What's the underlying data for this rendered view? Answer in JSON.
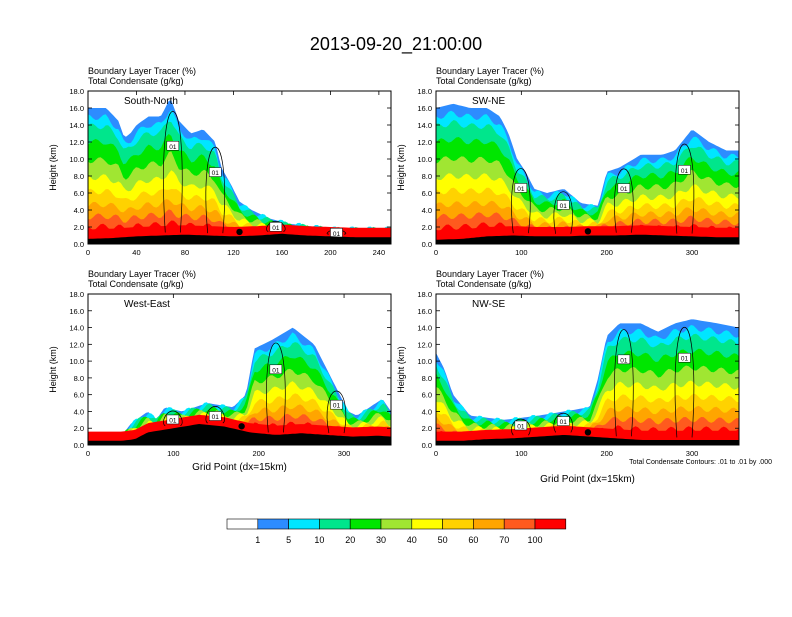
{
  "page_title": "2013-09-20_21:00:00",
  "panel_header_line1": "Boundary Layer Tracer   (%)",
  "panel_header_line2": "Total Condensate   (g/kg)",
  "y_axis_label": "Height (km)",
  "x_axis_label": "Grid Point (dx=15km)",
  "contour_note": "Total Condensate Contours: .01 to .01 by .000",
  "contour_label": "01",
  "colors": {
    "levels": [
      "#ffffff",
      "#2d8cff",
      "#00e6ff",
      "#00e68c",
      "#00e600",
      "#a0e632",
      "#ffff00",
      "#ffd200",
      "#ffa500",
      "#ff5a1e",
      "#ff0000"
    ],
    "dark_red": "#c80000",
    "terrain": "#000000",
    "contour": "#000000"
  },
  "chart_data": [
    {
      "type": "heatmap",
      "title": "South-North",
      "xlim": [
        0,
        250
      ],
      "ylim": [
        0,
        18
      ],
      "xticks": [
        "0",
        "40",
        "80",
        "120",
        "160",
        "200",
        "240"
      ],
      "xtick_values": [
        0,
        40,
        80,
        120,
        160,
        200,
        240
      ],
      "yticks": [
        "0.0",
        "2.0",
        "4.0",
        "6.0",
        "8.0",
        "10.0",
        "12.0",
        "14.0",
        "16.0",
        "18.0"
      ],
      "ytick_values": [
        0,
        2,
        4,
        6,
        8,
        10,
        12,
        14,
        16,
        18
      ],
      "marker_x": 125,
      "terrain": [
        [
          0,
          0.6
        ],
        [
          20,
          0.7
        ],
        [
          40,
          0.9
        ],
        [
          60,
          1.0
        ],
        [
          80,
          1.1
        ],
        [
          100,
          1.0
        ],
        [
          120,
          0.9
        ],
        [
          140,
          1.0
        ],
        [
          160,
          1.2
        ],
        [
          180,
          1.0
        ],
        [
          200,
          0.9
        ],
        [
          220,
          0.8
        ],
        [
          250,
          0.8
        ]
      ],
      "cloud_top": [
        [
          0,
          16
        ],
        [
          15,
          16
        ],
        [
          25,
          14.5
        ],
        [
          30,
          12.5
        ],
        [
          35,
          13
        ],
        [
          40,
          14
        ],
        [
          50,
          15
        ],
        [
          60,
          15
        ],
        [
          68,
          17.2
        ],
        [
          75,
          14.5
        ],
        [
          85,
          13
        ],
        [
          95,
          13.5
        ],
        [
          105,
          12
        ],
        [
          110,
          9
        ],
        [
          118,
          7
        ],
        [
          125,
          5
        ],
        [
          135,
          4
        ],
        [
          150,
          3
        ],
        [
          165,
          2.4
        ],
        [
          200,
          1.8
        ],
        [
          250,
          1.8
        ]
      ]
    },
    {
      "type": "heatmap",
      "title": "SW-NE",
      "xlim": [
        0,
        355
      ],
      "ylim": [
        0,
        18
      ],
      "xticks": [
        "0",
        "100",
        "200",
        "300"
      ],
      "xtick_values": [
        0,
        100,
        200,
        300
      ],
      "yticks": [
        "0.0",
        "2.0",
        "4.0",
        "6.0",
        "8.0",
        "10.0",
        "12.0",
        "14.0",
        "16.0",
        "18.0"
      ],
      "ytick_values": [
        0,
        2,
        4,
        6,
        8,
        10,
        12,
        14,
        16,
        18
      ],
      "marker_x": 178,
      "terrain": [
        [
          0,
          0.5
        ],
        [
          30,
          0.6
        ],
        [
          60,
          0.9
        ],
        [
          90,
          1.0
        ],
        [
          120,
          0.9
        ],
        [
          150,
          0.9
        ],
        [
          180,
          1.0
        ],
        [
          210,
          1.0
        ],
        [
          240,
          1.1
        ],
        [
          270,
          1.0
        ],
        [
          300,
          0.9
        ],
        [
          330,
          0.8
        ],
        [
          355,
          0.8
        ]
      ],
      "cloud_top": [
        [
          0,
          16
        ],
        [
          20,
          16.5
        ],
        [
          40,
          16
        ],
        [
          60,
          16
        ],
        [
          75,
          15
        ],
        [
          85,
          13
        ],
        [
          95,
          10
        ],
        [
          105,
          8.5
        ],
        [
          115,
          6.5
        ],
        [
          130,
          6
        ],
        [
          150,
          6.5
        ],
        [
          170,
          4.8
        ],
        [
          190,
          4.5
        ],
        [
          200,
          8.5
        ],
        [
          215,
          9
        ],
        [
          240,
          10.5
        ],
        [
          265,
          10.5
        ],
        [
          280,
          11
        ],
        [
          300,
          13.5
        ],
        [
          320,
          12
        ],
        [
          340,
          11
        ],
        [
          355,
          11
        ]
      ]
    },
    {
      "type": "heatmap",
      "title": "West-East",
      "xlim": [
        0,
        355
      ],
      "ylim": [
        0,
        18
      ],
      "xticks": [
        "0",
        "100",
        "200",
        "300"
      ],
      "xtick_values": [
        0,
        100,
        200,
        300
      ],
      "yticks": [
        "0.0",
        "2.0",
        "4.0",
        "6.0",
        "8.0",
        "10.0",
        "12.0",
        "14.0",
        "16.0",
        "18.0"
      ],
      "ytick_values": [
        0,
        2,
        4,
        6,
        8,
        10,
        12,
        14,
        16,
        18
      ],
      "marker_x": 180,
      "terrain": [
        [
          0,
          0.5
        ],
        [
          40,
          0.5
        ],
        [
          55,
          0.7
        ],
        [
          70,
          1.5
        ],
        [
          100,
          2.0
        ],
        [
          130,
          2.5
        ],
        [
          160,
          2.2
        ],
        [
          190,
          1.5
        ],
        [
          220,
          1.2
        ],
        [
          250,
          1.4
        ],
        [
          280,
          1.2
        ],
        [
          310,
          1.0
        ],
        [
          340,
          1.1
        ],
        [
          355,
          1.0
        ]
      ],
      "cloud_top": [
        [
          0,
          1.0
        ],
        [
          40,
          1.2
        ],
        [
          50,
          2.5
        ],
        [
          70,
          4.0
        ],
        [
          80,
          3.0
        ],
        [
          90,
          4.5
        ],
        [
          110,
          4.0
        ],
        [
          140,
          5.0
        ],
        [
          170,
          4.5
        ],
        [
          185,
          6.0
        ],
        [
          195,
          11.5
        ],
        [
          215,
          12.5
        ],
        [
          240,
          14.0
        ],
        [
          265,
          12.0
        ],
        [
          280,
          9.0
        ],
        [
          290,
          7.0
        ],
        [
          305,
          4.0
        ],
        [
          315,
          3.5
        ],
        [
          330,
          4.5
        ],
        [
          345,
          5.5
        ],
        [
          355,
          4.0
        ]
      ]
    },
    {
      "type": "heatmap",
      "title": "NW-SE",
      "xlim": [
        0,
        355
      ],
      "ylim": [
        0,
        18
      ],
      "xticks": [
        "0",
        "100",
        "200",
        "300"
      ],
      "xtick_values": [
        0,
        100,
        200,
        300
      ],
      "yticks": [
        "0.0",
        "2.0",
        "4.0",
        "6.0",
        "8.0",
        "10.0",
        "12.0",
        "14.0",
        "16.0",
        "18.0"
      ],
      "ytick_values": [
        0,
        2,
        4,
        6,
        8,
        10,
        12,
        14,
        16,
        18
      ],
      "marker_x": 178,
      "terrain": [
        [
          0,
          0.5
        ],
        [
          30,
          0.5
        ],
        [
          60,
          0.7
        ],
        [
          90,
          0.8
        ],
        [
          120,
          1.0
        ],
        [
          150,
          1.2
        ],
        [
          180,
          1.0
        ],
        [
          210,
          0.8
        ],
        [
          240,
          0.6
        ],
        [
          270,
          0.6
        ],
        [
          300,
          0.6
        ],
        [
          330,
          0.6
        ],
        [
          355,
          0.6
        ]
      ],
      "cloud_top": [
        [
          0,
          11
        ],
        [
          10,
          9
        ],
        [
          20,
          6
        ],
        [
          40,
          3.5
        ],
        [
          80,
          3.0
        ],
        [
          120,
          3.5
        ],
        [
          150,
          4.0
        ],
        [
          180,
          4.5
        ],
        [
          190,
          8.0
        ],
        [
          200,
          13.0
        ],
        [
          215,
          14.5
        ],
        [
          240,
          14.5
        ],
        [
          260,
          13.5
        ],
        [
          280,
          14.5
        ],
        [
          300,
          15.0
        ],
        [
          330,
          14.5
        ],
        [
          355,
          14.0
        ]
      ]
    }
  ],
  "colorbar": {
    "labels": [
      "1",
      "5",
      "10",
      "20",
      "30",
      "40",
      "50",
      "60",
      "70",
      "100"
    ]
  }
}
